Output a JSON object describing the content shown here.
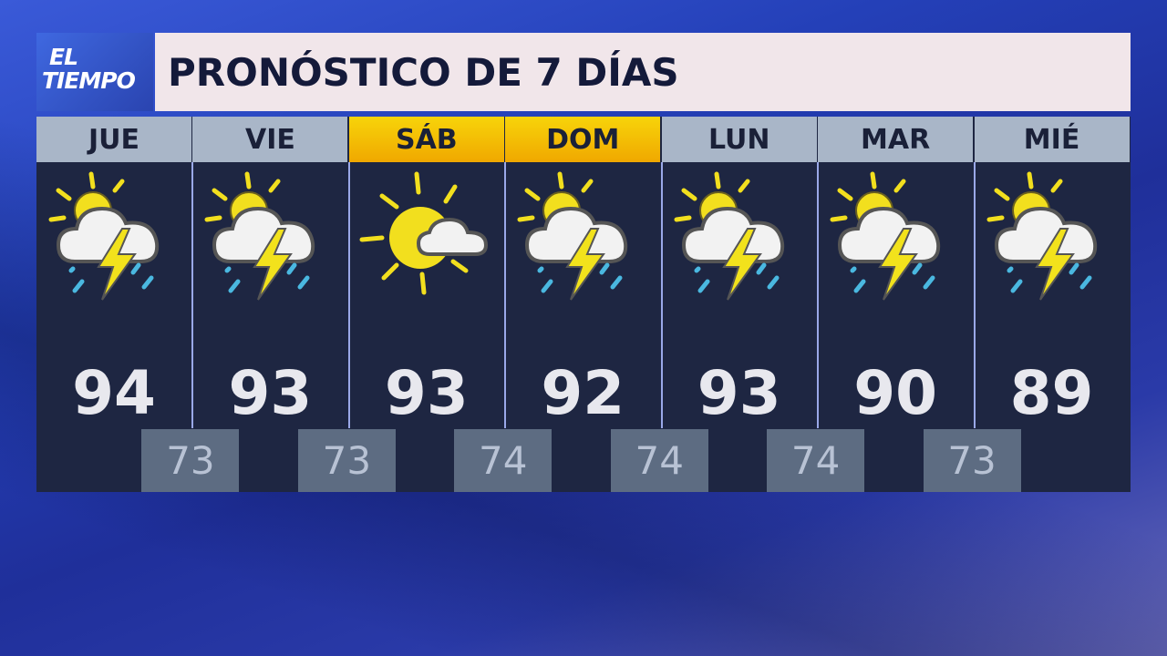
{
  "logo": {
    "line1": "EL",
    "line2": "TIEMPO"
  },
  "title": "PRONÓSTICO DE 7 DÍAS",
  "colors": {
    "weekend_header": "#f7d40a",
    "weekday_header": "#a9b6c8",
    "panel": "#1e2642",
    "low_box": "#5d6c82"
  },
  "days": [
    {
      "label": "JUE",
      "high": "94",
      "icon": "thunderstorm-partly-sunny-icon",
      "weekend": false
    },
    {
      "label": "VIE",
      "high": "93",
      "icon": "thunderstorm-partly-sunny-icon",
      "weekend": false
    },
    {
      "label": "SÁB",
      "high": "93",
      "icon": "mostly-sunny-icon",
      "weekend": true
    },
    {
      "label": "DOM",
      "high": "92",
      "icon": "thunderstorm-partly-sunny-icon",
      "weekend": true
    },
    {
      "label": "LUN",
      "high": "93",
      "icon": "thunderstorm-partly-sunny-icon",
      "weekend": false
    },
    {
      "label": "MAR",
      "high": "90",
      "icon": "thunderstorm-partly-sunny-icon",
      "weekend": false
    },
    {
      "label": "MIÉ",
      "high": "89",
      "icon": "thunderstorm-partly-sunny-icon",
      "weekend": false
    }
  ],
  "lows": [
    "73",
    "73",
    "74",
    "74",
    "74",
    "73"
  ]
}
